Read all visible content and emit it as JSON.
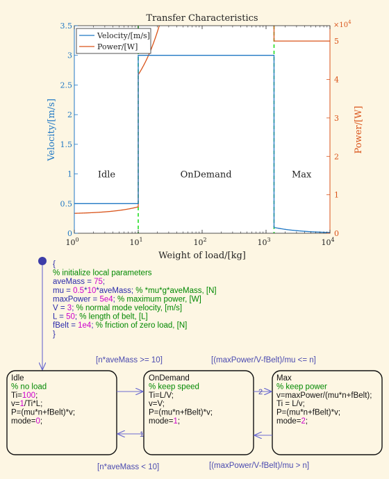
{
  "colors": {
    "background": "#fdf6e3",
    "velocity": "#1f77c4",
    "power": "#d95319",
    "threshold": "#22dd22",
    "code_default": "#2a2aaa",
    "code_comment": "#008800",
    "code_number": "#cc00cc",
    "condition": "#4a4ab0",
    "state_fill": "#fdf6e3"
  },
  "chart_data": {
    "type": "line",
    "title": "Transfer Characteristics",
    "xlabel": "Weight of load/[kg]",
    "ylabel_left": "Velocity/[m/s]",
    "ylabel_right": "Power/[W]",
    "right_exponent": "×10",
    "right_exponent_power": "4",
    "xscale": "log",
    "xlim": [
      1,
      10000
    ],
    "ylim_left": [
      0,
      3.5
    ],
    "ylim_right": [
      0,
      54000
    ],
    "x_ticks": [
      {
        "v": 1,
        "base": "10",
        "exp": "0"
      },
      {
        "v": 10,
        "base": "10",
        "exp": "1"
      },
      {
        "v": 100,
        "base": "10",
        "exp": "2"
      },
      {
        "v": 1000,
        "base": "10",
        "exp": "3"
      },
      {
        "v": 10000,
        "base": "10",
        "exp": "4"
      }
    ],
    "y_left_ticks": [
      "0",
      "0.5",
      "1",
      "1.5",
      "2",
      "2.5",
      "3",
      "3.5"
    ],
    "y_right_ticks": [
      "0",
      "1",
      "2",
      "3",
      "4",
      "5"
    ],
    "legend": [
      "Velocity/[m/s]",
      "Power/[W]"
    ],
    "legend_position": "top-left",
    "thresholds": [
      10,
      1333
    ],
    "regions": [
      {
        "label": "Idle",
        "x": 3.2
      },
      {
        "label": "OnDemand",
        "x": 115
      },
      {
        "label": "Max",
        "x": 3600
      }
    ],
    "grid": false
  },
  "entry_code": [
    [
      {
        "t": "{",
        "c": "d"
      }
    ],
    [
      {
        "t": "% initialize local parameters",
        "c": "g"
      }
    ],
    [
      {
        "t": "aveMass = ",
        "c": "d"
      },
      {
        "t": "75",
        "c": "n"
      },
      {
        "t": ";",
        "c": "d"
      }
    ],
    [
      {
        "t": "mu = ",
        "c": "d"
      },
      {
        "t": "0.5",
        "c": "n"
      },
      {
        "t": "*",
        "c": "d"
      },
      {
        "t": "10",
        "c": "n"
      },
      {
        "t": "*aveMass; ",
        "c": "d"
      },
      {
        "t": "% *mu*g*aveMass, [N]",
        "c": "g"
      }
    ],
    [
      {
        "t": "maxPower = ",
        "c": "d"
      },
      {
        "t": "5e4",
        "c": "n"
      },
      {
        "t": "; ",
        "c": "d"
      },
      {
        "t": "% maximum power, [W]",
        "c": "g"
      }
    ],
    [
      {
        "t": "V = ",
        "c": "d"
      },
      {
        "t": "3",
        "c": "n"
      },
      {
        "t": "; ",
        "c": "d"
      },
      {
        "t": "% normal mode velocity, [m/s]",
        "c": "g"
      }
    ],
    [
      {
        "t": "L = ",
        "c": "d"
      },
      {
        "t": "50",
        "c": "n"
      },
      {
        "t": "; ",
        "c": "d"
      },
      {
        "t": "% length of belt, [L]",
        "c": "g"
      }
    ],
    [
      {
        "t": "fBelt = ",
        "c": "d"
      },
      {
        "t": "1e4",
        "c": "n"
      },
      {
        "t": "; ",
        "c": "d"
      },
      {
        "t": "% friction of zero load, [N]",
        "c": "g"
      }
    ],
    [
      {
        "t": "}",
        "c": "d"
      }
    ]
  ],
  "states": {
    "idle": [
      [
        {
          "t": "Idle",
          "c": "k"
        }
      ],
      [
        {
          "t": "% no load",
          "c": "g"
        }
      ],
      [
        {
          "t": "Ti=",
          "c": "k"
        },
        {
          "t": "100",
          "c": "n"
        },
        {
          "t": ";",
          "c": "k"
        }
      ],
      [
        {
          "t": "v=",
          "c": "k"
        },
        {
          "t": "1",
          "c": "n"
        },
        {
          "t": "/Ti*L;",
          "c": "k"
        }
      ],
      [
        {
          "t": "P=(mu*n+fBelt)*v;",
          "c": "k"
        }
      ],
      [
        {
          "t": "mode=",
          "c": "k"
        },
        {
          "t": "0",
          "c": "n"
        },
        {
          "t": ";",
          "c": "k"
        }
      ]
    ],
    "ondemand": [
      [
        {
          "t": "OnDemand",
          "c": "k"
        }
      ],
      [
        {
          "t": "% keep speed",
          "c": "g"
        }
      ],
      [
        {
          "t": "Ti=L/V;",
          "c": "k"
        }
      ],
      [
        {
          "t": "v=V;",
          "c": "k"
        }
      ],
      [
        {
          "t": "P=(mu*n+fBelt)*v;",
          "c": "k"
        }
      ],
      [
        {
          "t": "mode=",
          "c": "k"
        },
        {
          "t": "1",
          "c": "n"
        },
        {
          "t": ";",
          "c": "k"
        }
      ]
    ],
    "max": [
      [
        {
          "t": "Max",
          "c": "k"
        }
      ],
      [
        {
          "t": "% keep power",
          "c": "g"
        }
      ],
      [
        {
          "t": "v=maxPower/(mu*n+fBelt);",
          "c": "k"
        }
      ],
      [
        {
          "t": "Ti = L/v;",
          "c": "k"
        }
      ],
      [
        {
          "t": "P=(mu*n+fBelt)*v;",
          "c": "k"
        }
      ],
      [
        {
          "t": "mode=",
          "c": "k"
        },
        {
          "t": "2",
          "c": "n"
        },
        {
          "t": ";",
          "c": "k"
        }
      ]
    ]
  },
  "transitions": {
    "idle_to_ondemand": "[n*aveMass >= 10]",
    "ondemand_to_max": "[(maxPower/V-fBelt)/mu  <= n]",
    "ondemand_to_idle": "[n*aveMass < 10]",
    "max_to_ondemand": "[(maxPower/V-fBelt)/mu > n]",
    "priority_ondemand_to_idle": "1",
    "priority_ondemand_to_max": "2"
  }
}
